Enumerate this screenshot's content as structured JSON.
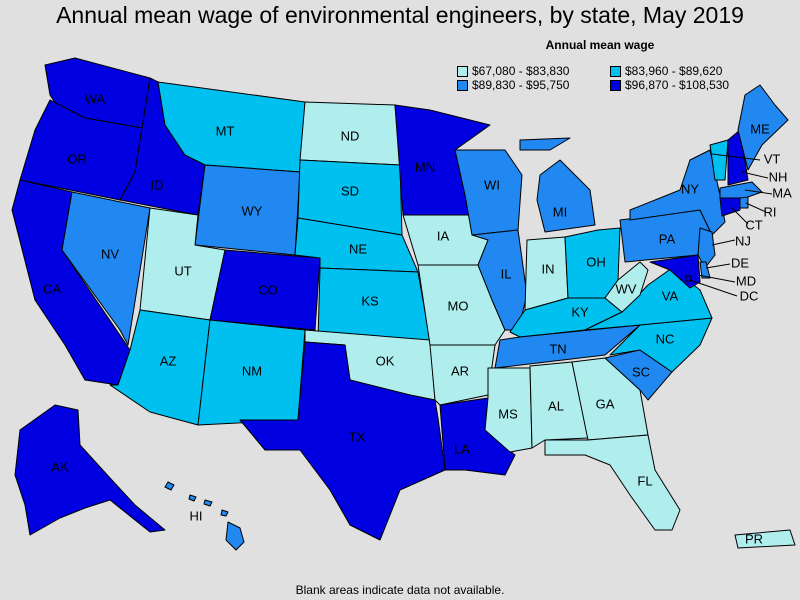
{
  "title": "Annual mean wage of environmental engineers, by state, May 2019",
  "legend": {
    "title": "Annual mean wage",
    "items": [
      {
        "label": "$67,080 - $83,830",
        "color": "#b0eeee"
      },
      {
        "label": "$83,960 - $89,620",
        "color": "#00c0f0"
      },
      {
        "label": "$89,830 - $95,750",
        "color": "#2088f0"
      },
      {
        "label": "$96,870 - $108,530",
        "color": "#0000e0"
      }
    ]
  },
  "footnote": "Blank areas indicate data not available.",
  "states": [
    {
      "abbr": "WA",
      "bin": 3
    },
    {
      "abbr": "OR",
      "bin": 3
    },
    {
      "abbr": "CA",
      "bin": 3
    },
    {
      "abbr": "ID",
      "bin": 3
    },
    {
      "abbr": "NV",
      "bin": 2
    },
    {
      "abbr": "MT",
      "bin": 1
    },
    {
      "abbr": "WY",
      "bin": 2
    },
    {
      "abbr": "UT",
      "bin": 0
    },
    {
      "abbr": "AZ",
      "bin": 1
    },
    {
      "abbr": "CO",
      "bin": 3
    },
    {
      "abbr": "NM",
      "bin": 1
    },
    {
      "abbr": "ND",
      "bin": 0
    },
    {
      "abbr": "SD",
      "bin": 1
    },
    {
      "abbr": "NE",
      "bin": 1
    },
    {
      "abbr": "KS",
      "bin": 1
    },
    {
      "abbr": "OK",
      "bin": 0
    },
    {
      "abbr": "TX",
      "bin": 3
    },
    {
      "abbr": "MN",
      "bin": 3
    },
    {
      "abbr": "IA",
      "bin": 0
    },
    {
      "abbr": "MO",
      "bin": 0
    },
    {
      "abbr": "AR",
      "bin": 0
    },
    {
      "abbr": "LA",
      "bin": 3
    },
    {
      "abbr": "WI",
      "bin": 2
    },
    {
      "abbr": "IL",
      "bin": 2
    },
    {
      "abbr": "MI",
      "bin": 2
    },
    {
      "abbr": "IN",
      "bin": 0
    },
    {
      "abbr": "OH",
      "bin": 1
    },
    {
      "abbr": "KY",
      "bin": 1
    },
    {
      "abbr": "TN",
      "bin": 2
    },
    {
      "abbr": "MS",
      "bin": 0
    },
    {
      "abbr": "AL",
      "bin": 0
    },
    {
      "abbr": "GA",
      "bin": 0
    },
    {
      "abbr": "FL",
      "bin": 0
    },
    {
      "abbr": "SC",
      "bin": 2
    },
    {
      "abbr": "NC",
      "bin": 1
    },
    {
      "abbr": "VA",
      "bin": 1
    },
    {
      "abbr": "WV",
      "bin": 0
    },
    {
      "abbr": "PA",
      "bin": 2
    },
    {
      "abbr": "NY",
      "bin": 2
    },
    {
      "abbr": "VT",
      "bin": 1
    },
    {
      "abbr": "NH",
      "bin": 3
    },
    {
      "abbr": "ME",
      "bin": 2
    },
    {
      "abbr": "MA",
      "bin": 2
    },
    {
      "abbr": "RI",
      "bin": 2
    },
    {
      "abbr": "CT",
      "bin": 3
    },
    {
      "abbr": "NJ",
      "bin": 2
    },
    {
      "abbr": "DE",
      "bin": 2
    },
    {
      "abbr": "MD",
      "bin": 3
    },
    {
      "abbr": "DC",
      "bin": 3
    },
    {
      "abbr": "AK",
      "bin": 3
    },
    {
      "abbr": "HI",
      "bin": 2
    },
    {
      "abbr": "PR",
      "bin": 0
    }
  ]
}
